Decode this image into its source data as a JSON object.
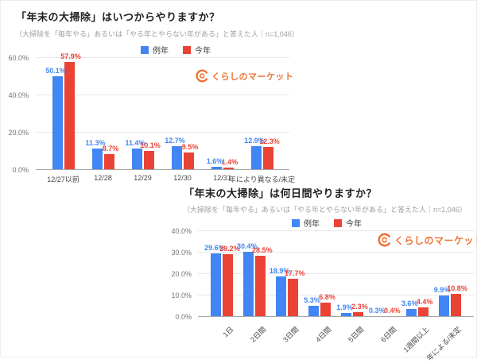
{
  "brand": {
    "logo_text": "くらしのマーケット",
    "logo_color": "#ED7434"
  },
  "colors": {
    "series_blue": "#4285F4",
    "series_red": "#EA4335"
  },
  "chart_data": [
    {
      "type": "bar",
      "title": "「年末の大掃除」はいつからやりますか？",
      "subtitle": "（大掃除を「毎年やる」あるいは「やる年とやらない年がある」と答えた人｜n=1,046）",
      "legend_position": "top",
      "grid": true,
      "categories": [
        "12/27以前",
        "12/28",
        "12/29",
        "12/30",
        "12/31",
        "年により異なる/未定"
      ],
      "series": [
        {
          "name": "例年",
          "color": "#4285F4",
          "values": [
            50.1,
            11.3,
            11.4,
            12.7,
            1.6,
            12.9
          ]
        },
        {
          "name": "今年",
          "color": "#EA4335",
          "values": [
            57.9,
            8.7,
            10.1,
            9.5,
            1.4,
            12.3
          ]
        }
      ],
      "xlabel": "",
      "ylabel": "",
      "ylim": [
        0,
        60
      ],
      "yticks": [
        0,
        20,
        40,
        60
      ],
      "ytick_labels": [
        "0.0%",
        "20.0%",
        "40.0%",
        "60.0%"
      ],
      "value_suffix": "%",
      "xlabel_rotation": 0
    },
    {
      "type": "bar",
      "title": "「年末の大掃除」は何日間やりますか？",
      "subtitle": "（大掃除を「毎年やる」あるいは「やる年とやらない年がある」と答えた人｜n=1,046）",
      "legend_position": "top",
      "grid": true,
      "categories": [
        "1日",
        "2日間",
        "3日間",
        "4日間",
        "5日間",
        "6日間",
        "1週間以上",
        "年による/未定"
      ],
      "series": [
        {
          "name": "例年",
          "color": "#4285F4",
          "values": [
            29.6,
            30.4,
            18.9,
            5.3,
            1.9,
            0.3,
            3.6,
            9.9
          ]
        },
        {
          "name": "今年",
          "color": "#EA4335",
          "values": [
            29.2,
            28.5,
            17.7,
            6.8,
            2.3,
            0.4,
            4.4,
            10.8
          ]
        }
      ],
      "xlabel": "",
      "ylabel": "",
      "ylim": [
        0,
        40
      ],
      "yticks": [
        0,
        10,
        20,
        30,
        40
      ],
      "ytick_labels": [
        "0.0%",
        "10.0%",
        "20.0%",
        "30.0%",
        "40.0%"
      ],
      "value_suffix": "%",
      "xlabel_rotation": -45
    }
  ]
}
